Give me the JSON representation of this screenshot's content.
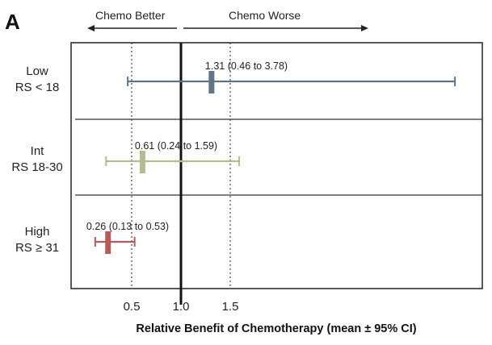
{
  "chart_data": {
    "type": "forest",
    "panel_label": "A",
    "direction_labels": {
      "left": "Chemo Better",
      "right": "Chemo Worse"
    },
    "xlabel": "Relative Benefit of Chemotherapy (mean ± 95% CI)",
    "xlim": [
      -0.12,
      4.0
    ],
    "xticks": [
      {
        "value": 0.5,
        "label": "0.5"
      },
      {
        "value": 1.0,
        "label": "1.0"
      },
      {
        "value": 1.5,
        "label": "1.5"
      }
    ],
    "reference_line": 1.0,
    "dotted_lines": [
      0.5,
      1.5
    ],
    "groups": [
      {
        "name": "Low",
        "sub": "RS < 18",
        "mean": 1.31,
        "lo": 0.46,
        "hi": 3.78,
        "annotation": "1.31 (0.46 to 3.78)",
        "color": "#5f7485"
      },
      {
        "name": "Int",
        "sub": "RS 18-30",
        "mean": 0.61,
        "lo": 0.24,
        "hi": 1.59,
        "annotation": "0.61 (0.24 to 1.59)",
        "color": "#b3bc8e"
      },
      {
        "name": "High",
        "sub": "RS ≥ 31",
        "mean": 0.26,
        "lo": 0.13,
        "hi": 0.53,
        "annotation": "0.26 (0.13 to 0.53)",
        "color": "#b65a5a"
      }
    ]
  }
}
